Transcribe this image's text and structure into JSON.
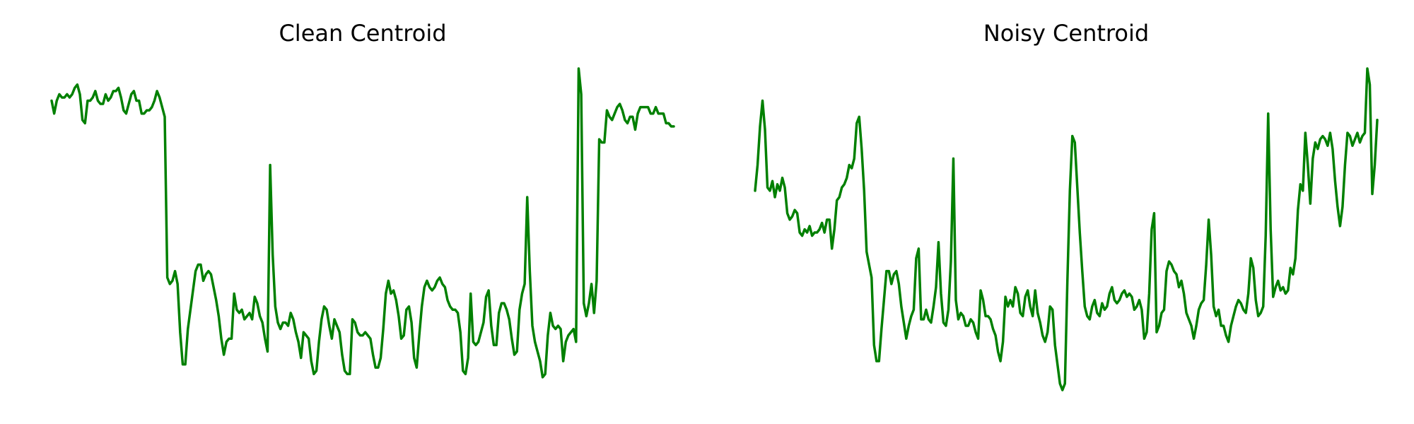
{
  "chart_data": [
    {
      "type": "line",
      "title": "Clean Centroid",
      "xlabel": "",
      "ylabel": "",
      "grid": false,
      "axes_visible": false,
      "ylim": [
        0,
        1
      ],
      "color": "#008000",
      "series": [
        {
          "values": [
            0.9,
            0.86,
            0.9,
            0.92,
            0.91,
            0.91,
            0.92,
            0.91,
            0.92,
            0.94,
            0.95,
            0.92,
            0.84,
            0.83,
            0.9,
            0.9,
            0.91,
            0.93,
            0.9,
            0.89,
            0.89,
            0.92,
            0.9,
            0.91,
            0.93,
            0.93,
            0.94,
            0.91,
            0.87,
            0.86,
            0.89,
            0.92,
            0.93,
            0.9,
            0.9,
            0.86,
            0.86,
            0.87,
            0.87,
            0.88,
            0.9,
            0.93,
            0.91,
            0.88,
            0.85,
            0.35,
            0.33,
            0.34,
            0.37,
            0.33,
            0.18,
            0.08,
            0.08,
            0.19,
            0.25,
            0.31,
            0.37,
            0.39,
            0.39,
            0.34,
            0.36,
            0.37,
            0.36,
            0.32,
            0.28,
            0.23,
            0.16,
            0.11,
            0.15,
            0.16,
            0.16,
            0.3,
            0.25,
            0.24,
            0.25,
            0.22,
            0.23,
            0.24,
            0.22,
            0.29,
            0.27,
            0.23,
            0.21,
            0.16,
            0.12,
            0.7,
            0.42,
            0.26,
            0.21,
            0.19,
            0.21,
            0.21,
            0.2,
            0.24,
            0.22,
            0.18,
            0.15,
            0.1,
            0.18,
            0.17,
            0.16,
            0.09,
            0.05,
            0.06,
            0.15,
            0.22,
            0.26,
            0.25,
            0.2,
            0.16,
            0.22,
            0.2,
            0.18,
            0.11,
            0.06,
            0.05,
            0.05,
            0.22,
            0.21,
            0.18,
            0.17,
            0.17,
            0.18,
            0.17,
            0.16,
            0.11,
            0.07,
            0.07,
            0.1,
            0.19,
            0.3,
            0.34,
            0.3,
            0.31,
            0.28,
            0.23,
            0.16,
            0.17,
            0.25,
            0.26,
            0.21,
            0.1,
            0.07,
            0.17,
            0.26,
            0.32,
            0.34,
            0.32,
            0.31,
            0.32,
            0.34,
            0.35,
            0.33,
            0.32,
            0.28,
            0.26,
            0.25,
            0.25,
            0.24,
            0.18,
            0.06,
            0.05,
            0.1,
            0.3,
            0.15,
            0.14,
            0.15,
            0.18,
            0.21,
            0.29,
            0.31,
            0.2,
            0.14,
            0.14,
            0.24,
            0.27,
            0.27,
            0.25,
            0.22,
            0.16,
            0.11,
            0.12,
            0.25,
            0.3,
            0.33,
            0.6,
            0.37,
            0.2,
            0.15,
            0.12,
            0.09,
            0.04,
            0.05,
            0.17,
            0.24,
            0.2,
            0.19,
            0.2,
            0.19,
            0.09,
            0.15,
            0.17,
            0.18,
            0.19,
            0.15,
            1.0,
            0.92,
            0.27,
            0.23,
            0.27,
            0.33,
            0.24,
            0.34,
            0.78,
            0.77,
            0.77,
            0.87,
            0.85,
            0.84,
            0.86,
            0.88,
            0.89,
            0.87,
            0.84,
            0.83,
            0.85,
            0.85,
            0.81,
            0.86,
            0.88,
            0.88,
            0.88,
            0.88,
            0.86,
            0.86,
            0.88,
            0.86,
            0.86,
            0.86,
            0.83,
            0.83,
            0.82,
            0.82
          ]
        }
      ]
    },
    {
      "type": "line",
      "title": "Noisy Centroid",
      "xlabel": "",
      "ylabel": "",
      "grid": false,
      "axes_visible": false,
      "ylim": [
        0,
        1
      ],
      "color": "#008000",
      "series": [
        {
          "values": [
            0.62,
            0.7,
            0.82,
            0.9,
            0.81,
            0.63,
            0.62,
            0.65,
            0.6,
            0.64,
            0.62,
            0.66,
            0.63,
            0.55,
            0.53,
            0.54,
            0.56,
            0.55,
            0.49,
            0.48,
            0.5,
            0.49,
            0.51,
            0.48,
            0.49,
            0.49,
            0.5,
            0.52,
            0.49,
            0.53,
            0.53,
            0.44,
            0.5,
            0.59,
            0.6,
            0.63,
            0.64,
            0.66,
            0.7,
            0.69,
            0.72,
            0.83,
            0.85,
            0.75,
            0.62,
            0.43,
            0.39,
            0.35,
            0.14,
            0.09,
            0.09,
            0.19,
            0.28,
            0.37,
            0.37,
            0.33,
            0.36,
            0.37,
            0.33,
            0.26,
            0.21,
            0.16,
            0.2,
            0.23,
            0.25,
            0.41,
            0.44,
            0.22,
            0.22,
            0.25,
            0.22,
            0.21,
            0.26,
            0.32,
            0.46,
            0.3,
            0.21,
            0.2,
            0.25,
            0.4,
            0.72,
            0.28,
            0.22,
            0.24,
            0.23,
            0.2,
            0.2,
            0.22,
            0.21,
            0.18,
            0.16,
            0.31,
            0.28,
            0.23,
            0.23,
            0.22,
            0.19,
            0.17,
            0.12,
            0.09,
            0.15,
            0.29,
            0.26,
            0.28,
            0.26,
            0.32,
            0.3,
            0.24,
            0.23,
            0.29,
            0.31,
            0.26,
            0.23,
            0.31,
            0.24,
            0.21,
            0.17,
            0.15,
            0.18,
            0.26,
            0.25,
            0.14,
            0.08,
            0.02,
            0.0,
            0.02,
            0.34,
            0.62,
            0.79,
            0.77,
            0.63,
            0.49,
            0.37,
            0.26,
            0.23,
            0.22,
            0.26,
            0.28,
            0.24,
            0.23,
            0.27,
            0.25,
            0.26,
            0.3,
            0.32,
            0.28,
            0.27,
            0.28,
            0.3,
            0.31,
            0.29,
            0.3,
            0.29,
            0.25,
            0.26,
            0.28,
            0.25,
            0.16,
            0.18,
            0.3,
            0.5,
            0.55,
            0.18,
            0.2,
            0.24,
            0.25,
            0.37,
            0.4,
            0.39,
            0.37,
            0.36,
            0.32,
            0.34,
            0.3,
            0.24,
            0.22,
            0.2,
            0.16,
            0.2,
            0.25,
            0.27,
            0.28,
            0.39,
            0.53,
            0.42,
            0.26,
            0.23,
            0.25,
            0.2,
            0.2,
            0.17,
            0.15,
            0.2,
            0.23,
            0.26,
            0.28,
            0.27,
            0.25,
            0.24,
            0.3,
            0.41,
            0.38,
            0.28,
            0.23,
            0.24,
            0.26,
            0.48,
            0.86,
            0.5,
            0.29,
            0.32,
            0.34,
            0.31,
            0.32,
            0.3,
            0.31,
            0.38,
            0.36,
            0.41,
            0.56,
            0.64,
            0.62,
            0.8,
            0.7,
            0.58,
            0.72,
            0.77,
            0.75,
            0.78,
            0.79,
            0.78,
            0.76,
            0.8,
            0.75,
            0.65,
            0.57,
            0.51,
            0.57,
            0.7,
            0.8,
            0.79,
            0.76,
            0.78,
            0.8,
            0.77,
            0.79,
            0.8,
            1.0,
            0.95,
            0.61,
            0.7,
            0.84
          ]
        }
      ]
    }
  ]
}
